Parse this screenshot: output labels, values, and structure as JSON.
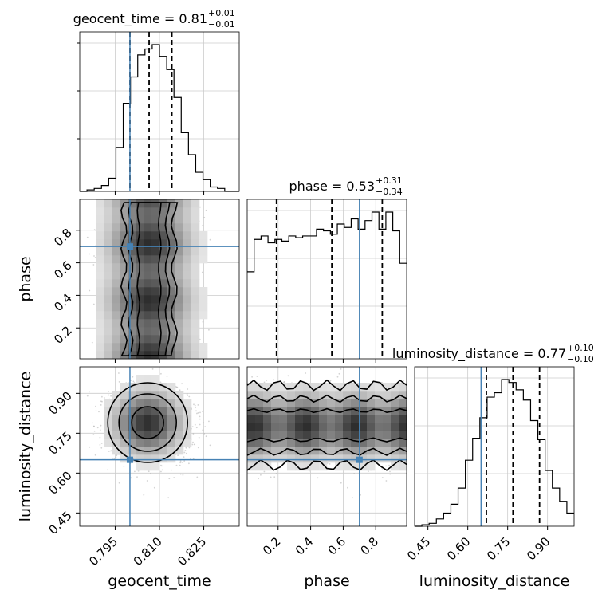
{
  "chart_data": {
    "type": "corner",
    "parameters": [
      "geocent_time",
      "phase",
      "luminosity_distance"
    ],
    "truths": {
      "geocent_time": 0.8,
      "phase": 0.7,
      "luminosity_distance": 0.65
    },
    "truth_color": "#4682b4",
    "ranges": {
      "geocent_time": [
        0.783,
        0.837
      ],
      "phase": [
        0.01,
        0.99
      ],
      "luminosity_distance": [
        0.4,
        1.0
      ]
    },
    "ticks": {
      "geocent_time": [
        0.795,
        0.81,
        0.825
      ],
      "phase": [
        0.2,
        0.4,
        0.6,
        0.8
      ],
      "luminosity_distance": [
        0.45,
        0.6,
        0.75,
        0.9
      ]
    },
    "tick_labels": {
      "geocent_time": [
        "0.795",
        "0.810",
        "0.825"
      ],
      "phase": [
        "0.2",
        "0.4",
        "0.6",
        "0.8"
      ],
      "luminosity_distance": [
        "0.45",
        "0.60",
        "0.75",
        "0.90"
      ]
    },
    "titles": [
      {
        "param": "geocent_time",
        "text": "geocent_time = 0.81",
        "plus": "+0.01",
        "minus": "−0.01"
      },
      {
        "param": "phase",
        "text": "phase = 0.53",
        "plus": "+0.31",
        "minus": "−0.34"
      },
      {
        "param": "luminosity_distance",
        "text": "luminosity_distance = 0.77",
        "plus": "+0.10",
        "minus": "−0.10"
      }
    ],
    "quantiles": {
      "geocent_time": [
        0.8,
        0.8065,
        0.8142
      ],
      "phase": [
        0.19,
        0.53,
        0.84
      ],
      "luminosity_distance": [
        0.67,
        0.77,
        0.87
      ]
    },
    "histograms": {
      "geocent_time": {
        "bins": [
          0.783,
          0.837
        ],
        "counts": [
          0,
          1,
          2,
          4,
          9,
          30,
          60,
          78,
          93,
          97,
          100,
          92,
          83,
          64,
          40,
          25,
          13,
          8,
          3,
          2,
          0,
          0
        ]
      },
      "phase": {
        "bins": [
          0.01,
          0.99
        ],
        "counts": [
          51,
          70,
          72,
          68,
          70,
          69,
          72,
          71,
          72,
          72,
          76,
          75,
          73,
          79,
          77,
          82,
          76,
          81,
          86,
          76,
          86,
          75,
          56
        ]
      },
      "luminosity_distance": {
        "bins": [
          0.4,
          1.0
        ],
        "counts": [
          0,
          1,
          2,
          5,
          9,
          15,
          26,
          45,
          60,
          74,
          88,
          91,
          100,
          98,
          93,
          86,
          72,
          59,
          38,
          26,
          17,
          9
        ]
      }
    },
    "grid": true,
    "grayscale": true
  }
}
